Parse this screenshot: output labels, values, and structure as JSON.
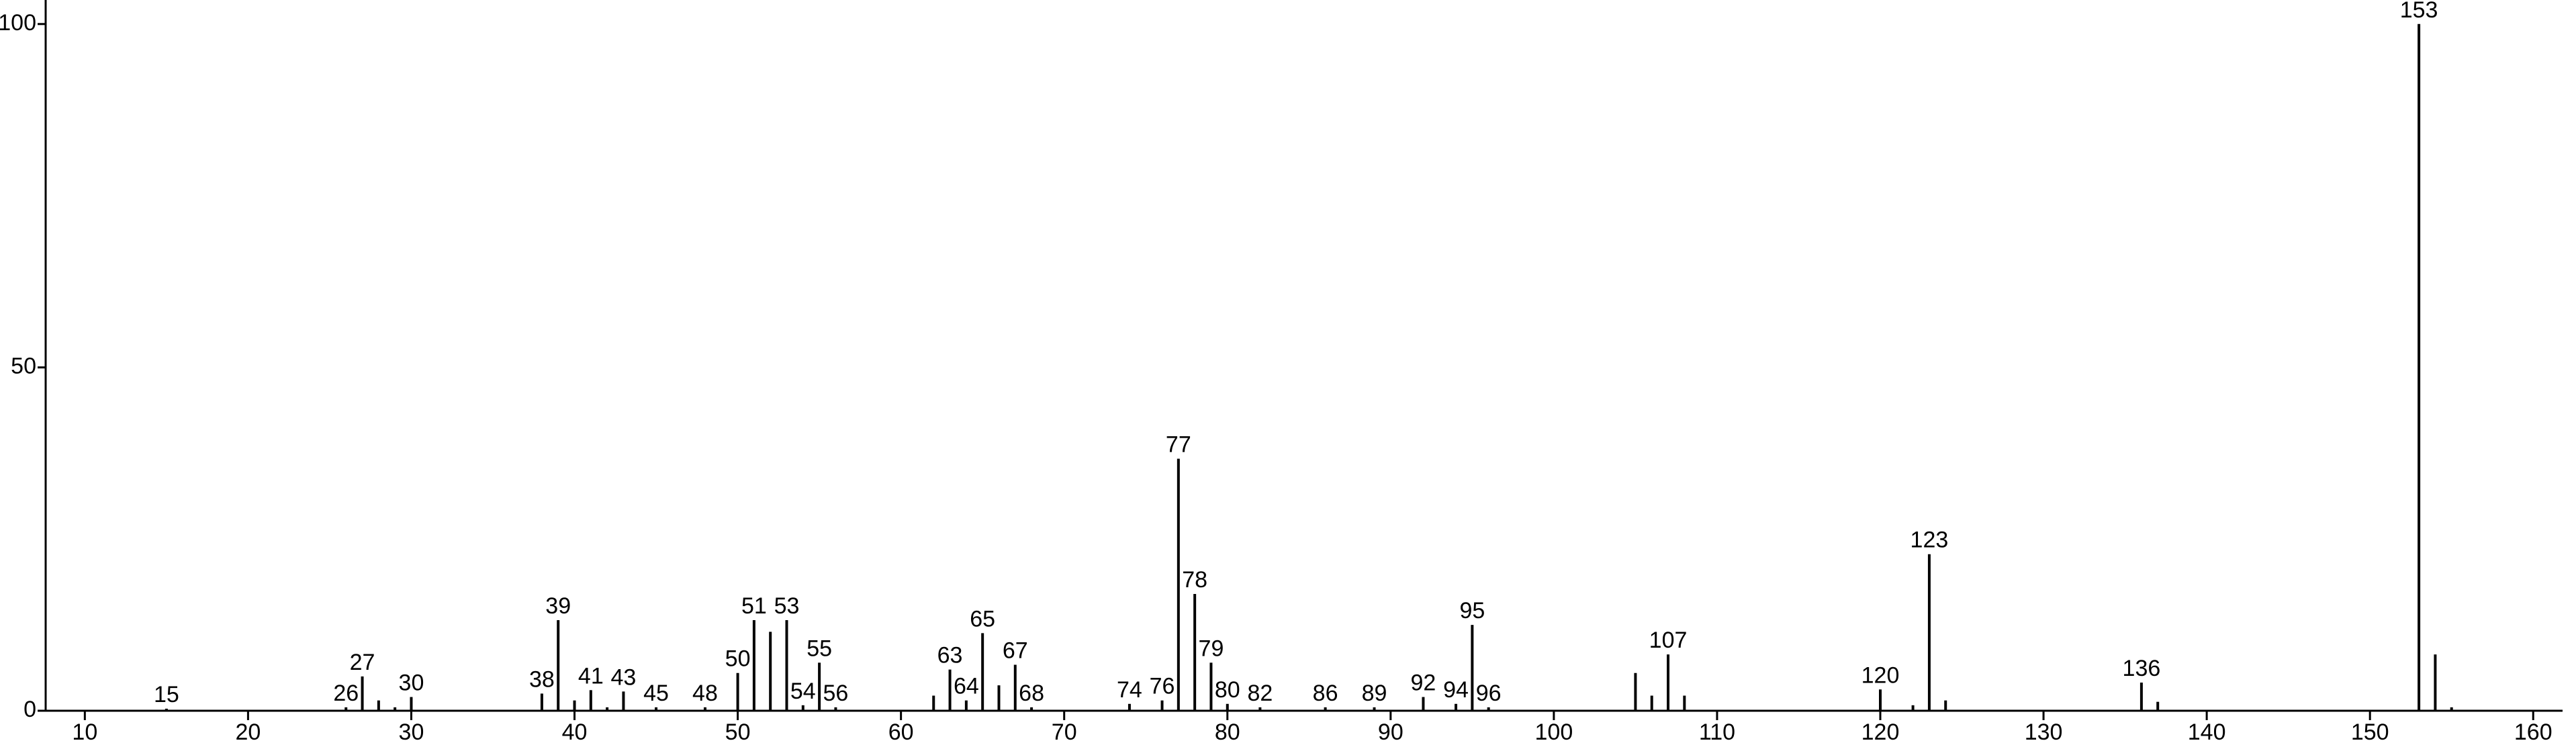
{
  "chart_data": {
    "type": "spectrum",
    "x": [
      15,
      26,
      27,
      28,
      29,
      30,
      38,
      39,
      40,
      41,
      42,
      43,
      45,
      48,
      50,
      51,
      52,
      53,
      54,
      55,
      56,
      62,
      63,
      64,
      65,
      66,
      67,
      68,
      74,
      76,
      77,
      78,
      79,
      80,
      82,
      86,
      89,
      92,
      94,
      95,
      96,
      105,
      106,
      107,
      108,
      120,
      122,
      123,
      124,
      136,
      137,
      153,
      154,
      155
    ],
    "values": [
      0.3,
      0.5,
      5.0,
      1.5,
      0.5,
      2.0,
      2.5,
      13.2,
      1.5,
      3.0,
      0.5,
      2.8,
      0.5,
      0.5,
      5.5,
      13.2,
      11.5,
      13.2,
      0.8,
      7.0,
      0.5,
      2.2,
      6.0,
      1.5,
      11.3,
      3.7,
      6.7,
      0.5,
      1.0,
      1.5,
      36.7,
      17.0,
      7.0,
      1.0,
      0.5,
      0.5,
      0.5,
      2.0,
      1.0,
      12.5,
      0.5,
      5.5,
      2.2,
      8.2,
      2.2,
      3.1,
      0.8,
      22.8,
      1.5,
      4.1,
      1.3,
      100,
      8.2,
      0.5
    ],
    "annotations": [
      15,
      26,
      27,
      30,
      38,
      39,
      41,
      43,
      45,
      48,
      50,
      51,
      53,
      54,
      55,
      56,
      63,
      64,
      65,
      67,
      68,
      74,
      76,
      77,
      78,
      79,
      80,
      82,
      86,
      89,
      92,
      94,
      95,
      96,
      107,
      120,
      123,
      136,
      153
    ],
    "color": "#000000",
    "xlim": [
      7.6,
      161.8
    ],
    "ylim": [
      0,
      103.5
    ],
    "xticks": [
      10,
      20,
      30,
      40,
      50,
      60,
      70,
      80,
      90,
      100,
      110,
      120,
      130,
      140,
      150,
      160
    ],
    "yticks": [
      0,
      50,
      100
    ]
  }
}
